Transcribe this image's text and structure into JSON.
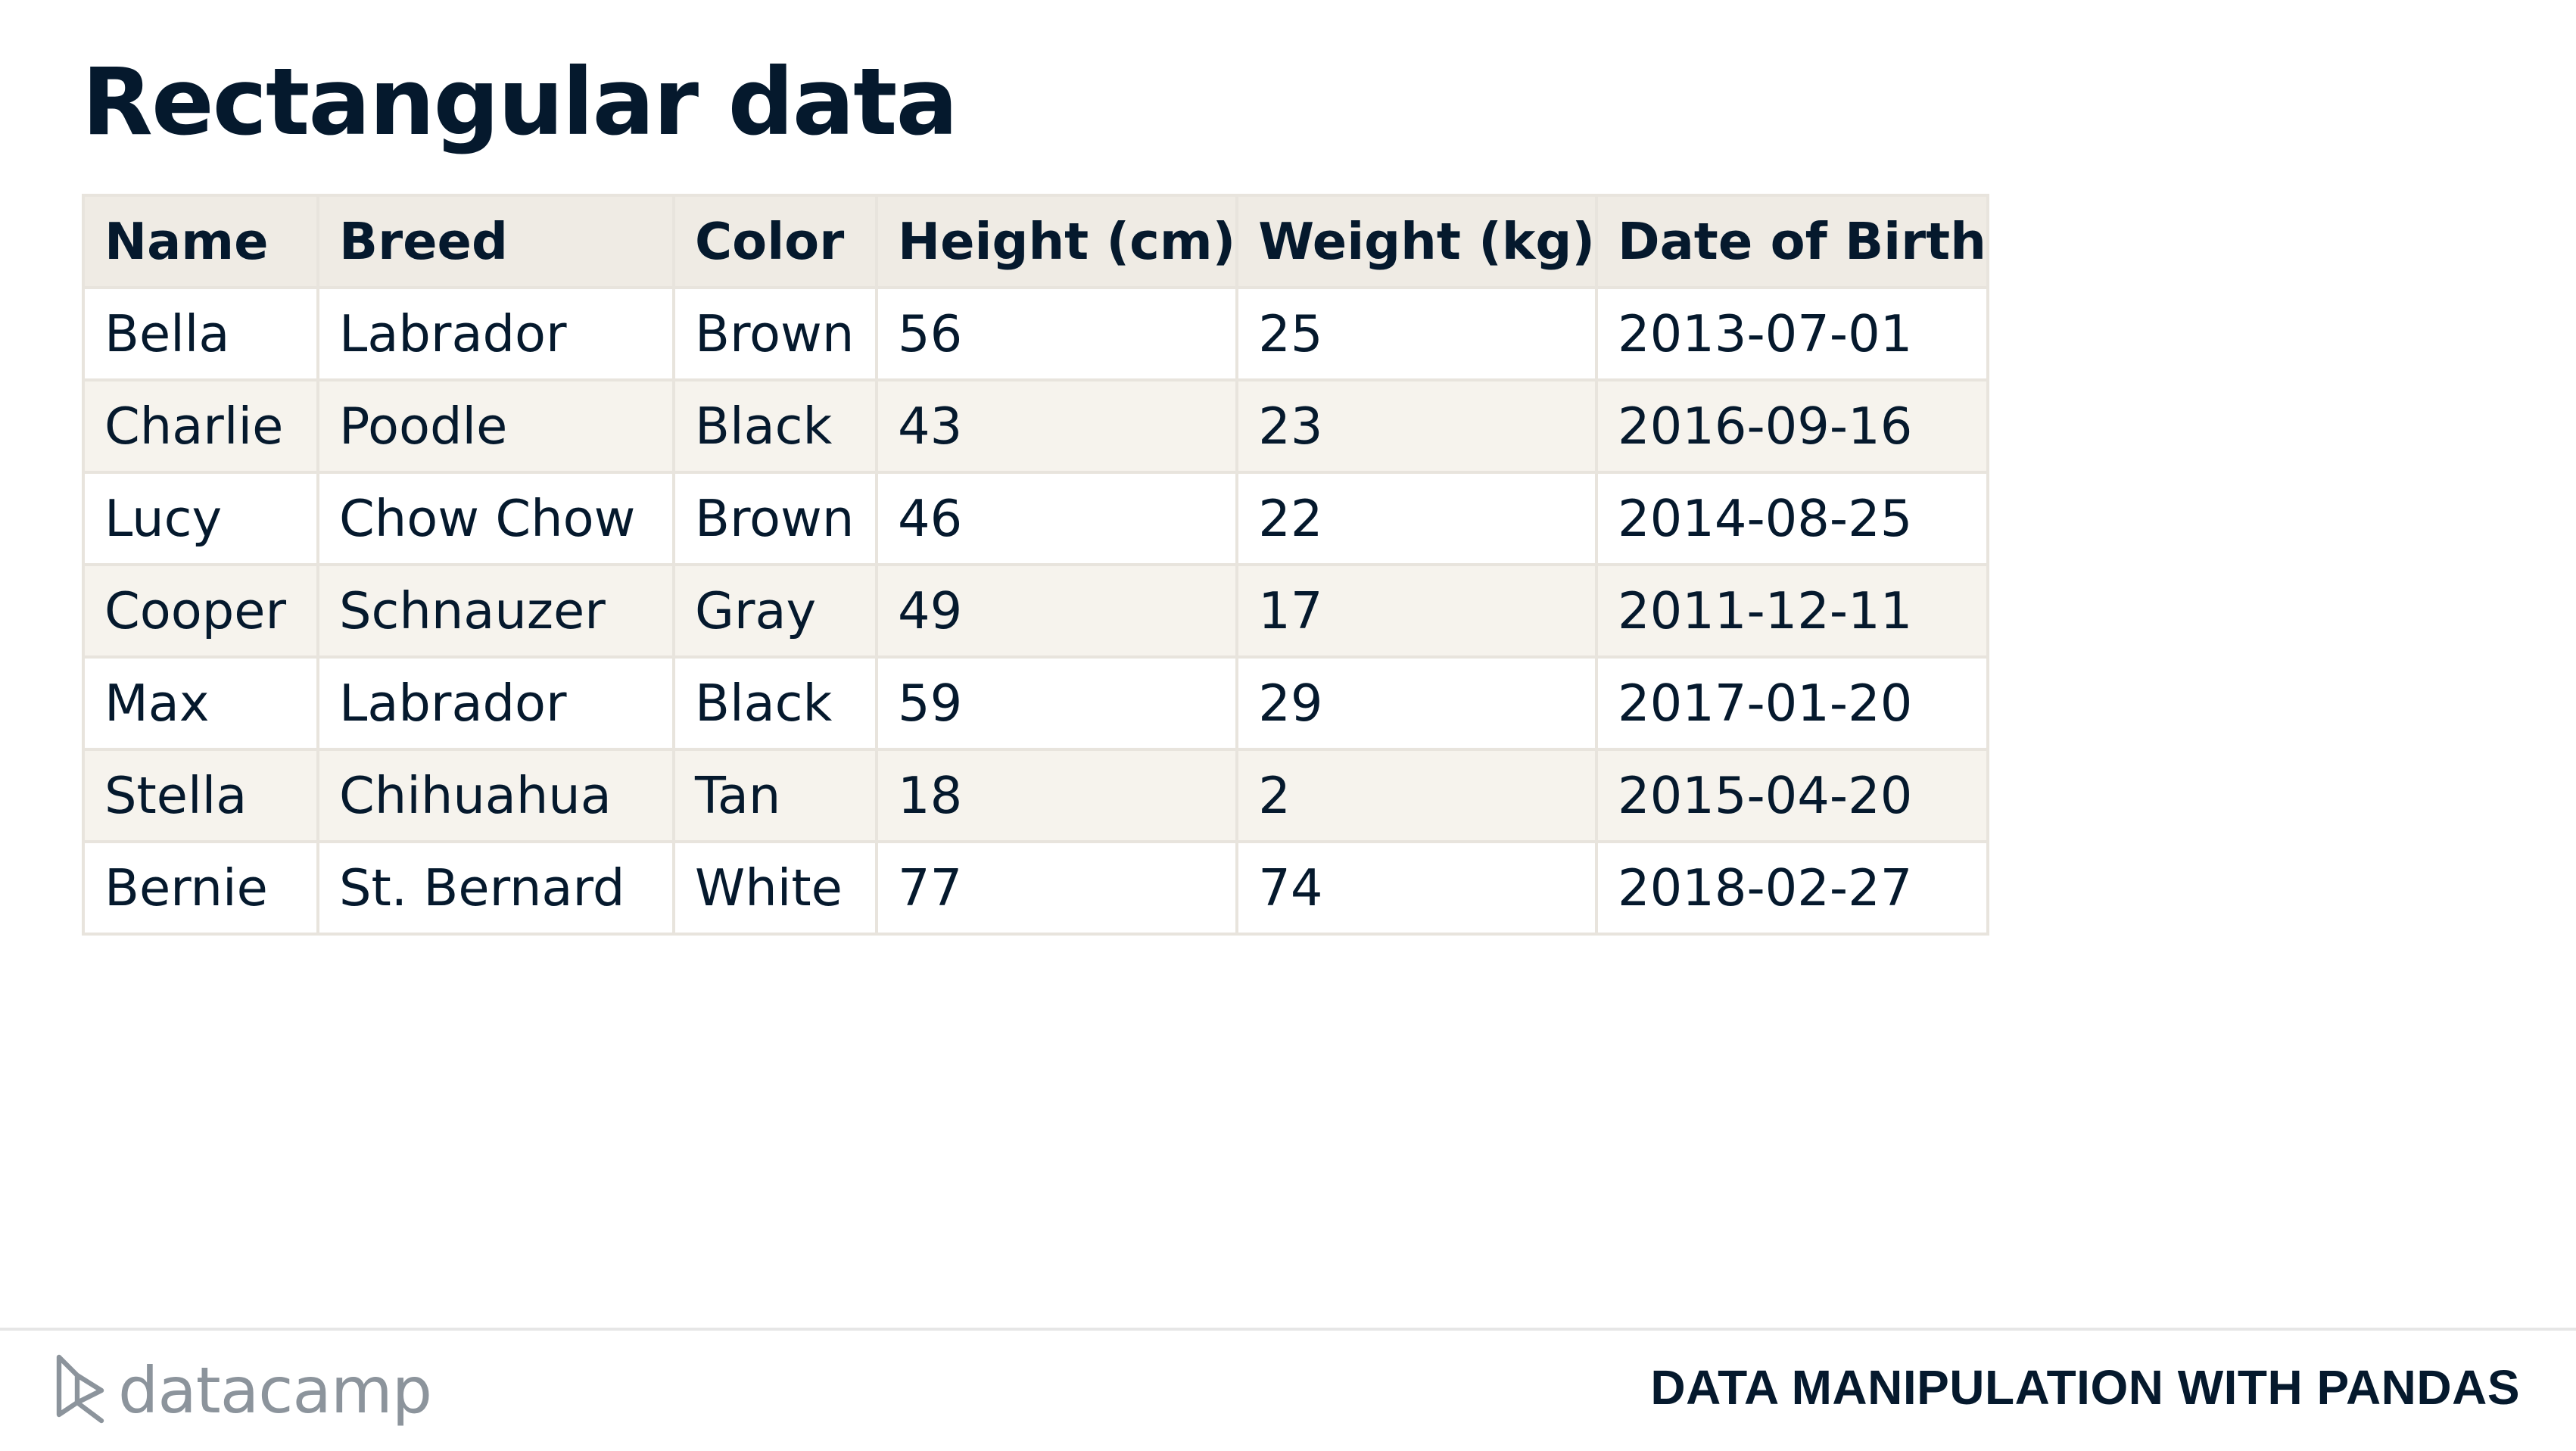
{
  "slide": {
    "title": "Rectangular data"
  },
  "table": {
    "columns": [
      "Name",
      "Breed",
      "Color",
      "Height (cm)",
      "Weight (kg)",
      "Date of Birth"
    ],
    "rows": [
      [
        "Bella",
        "Labrador",
        "Brown",
        "56",
        "25",
        "2013-07-01"
      ],
      [
        "Charlie",
        "Poodle",
        "Black",
        "43",
        "23",
        "2016-09-16"
      ],
      [
        "Lucy",
        "Chow Chow",
        "Brown",
        "46",
        "22",
        "2014-08-25"
      ],
      [
        "Cooper",
        "Schnauzer",
        "Gray",
        "49",
        "17",
        "2011-12-11"
      ],
      [
        "Max",
        "Labrador",
        "Black",
        "59",
        "29",
        "2017-01-20"
      ],
      [
        "Stella",
        "Chihuahua",
        "Tan",
        "18",
        "2",
        "2015-04-20"
      ],
      [
        "Bernie",
        "St. Bernard",
        "White",
        "77",
        "74",
        "2018-02-27"
      ]
    ]
  },
  "footer": {
    "logo_text": "datacamp",
    "logo_icon": "datacamp-logo-icon",
    "course_title": "DATA MANIPULATION WITH PANDAS"
  },
  "colors": {
    "text": "#05192d",
    "header_bg": "#efebe4",
    "stripe_bg": "#f6f3ed",
    "border": "#e8e4dd",
    "logo_gray": "#8c949c"
  }
}
